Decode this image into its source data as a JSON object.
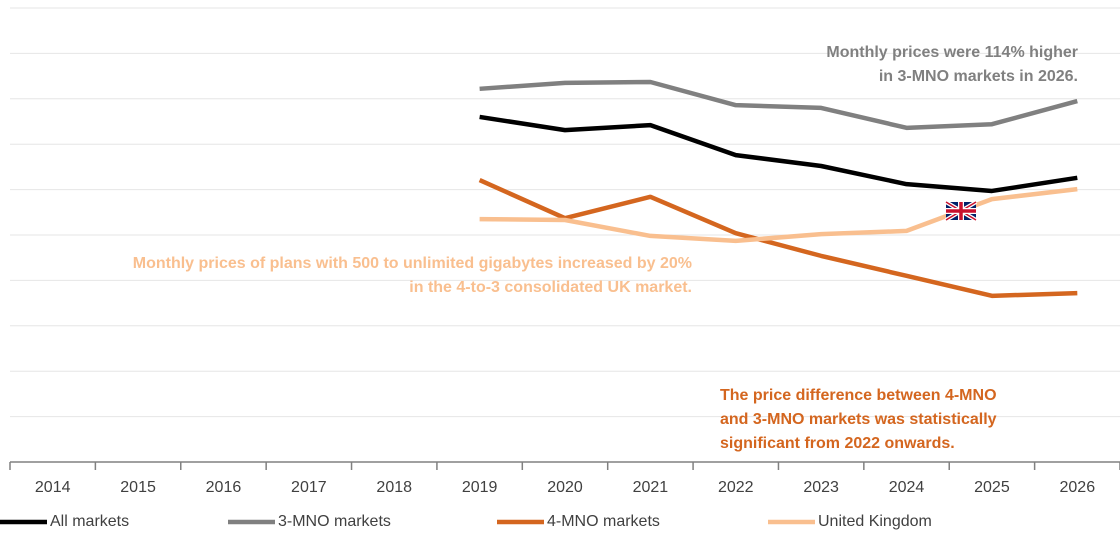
{
  "chart_data": {
    "type": "line",
    "categories": [
      "2014",
      "2015",
      "2016",
      "2017",
      "2018",
      "2019",
      "2020",
      "2021",
      "2022",
      "2023",
      "2024",
      "2025",
      "2026"
    ],
    "series": [
      {
        "name": "All markets",
        "color": "#000000",
        "values": [
          null,
          null,
          null,
          null,
          null,
          7.6,
          7.31,
          7.42,
          6.76,
          6.52,
          6.12,
          5.97,
          6.26
        ]
      },
      {
        "name": "3-MNO markets",
        "color": "#808080",
        "values": [
          null,
          null,
          null,
          null,
          null,
          8.22,
          8.35,
          8.37,
          7.86,
          7.8,
          7.36,
          7.44,
          7.95
        ]
      },
      {
        "name": "4-MNO markets",
        "color": "#d4661f",
        "values": [
          null,
          null,
          null,
          null,
          null,
          6.21,
          5.37,
          5.84,
          5.04,
          4.54,
          4.1,
          3.66,
          3.72
        ]
      },
      {
        "name": "United Kingdom",
        "color": "#f9bf8f",
        "values": [
          null,
          null,
          null,
          null,
          null,
          5.35,
          5.33,
          4.98,
          4.87,
          5.02,
          5.09,
          5.79,
          6.01
        ]
      }
    ],
    "ylim": [
      0,
      10
    ],
    "yticks": [
      0,
      1,
      2,
      3,
      4,
      5,
      6,
      7,
      8,
      9,
      10
    ],
    "grid": true,
    "legend": "bottom",
    "annotations": [
      {
        "lines": [
          "Monthly prices were 114% higher",
          "in 3-MNO markets in 2026."
        ],
        "color": "#808080"
      },
      {
        "lines": [
          "Monthly prices of plans with 500 to unlimited gigabytes increased by 20%",
          "in the 4-to-3 consolidated UK market."
        ],
        "color": "#f9bf8f"
      },
      {
        "lines": [
          "The price difference between 4-MNO",
          "and 3-MNO markets was statistically",
          "significant  from 2022 onwards."
        ],
        "color": "#d4661f"
      }
    ]
  }
}
